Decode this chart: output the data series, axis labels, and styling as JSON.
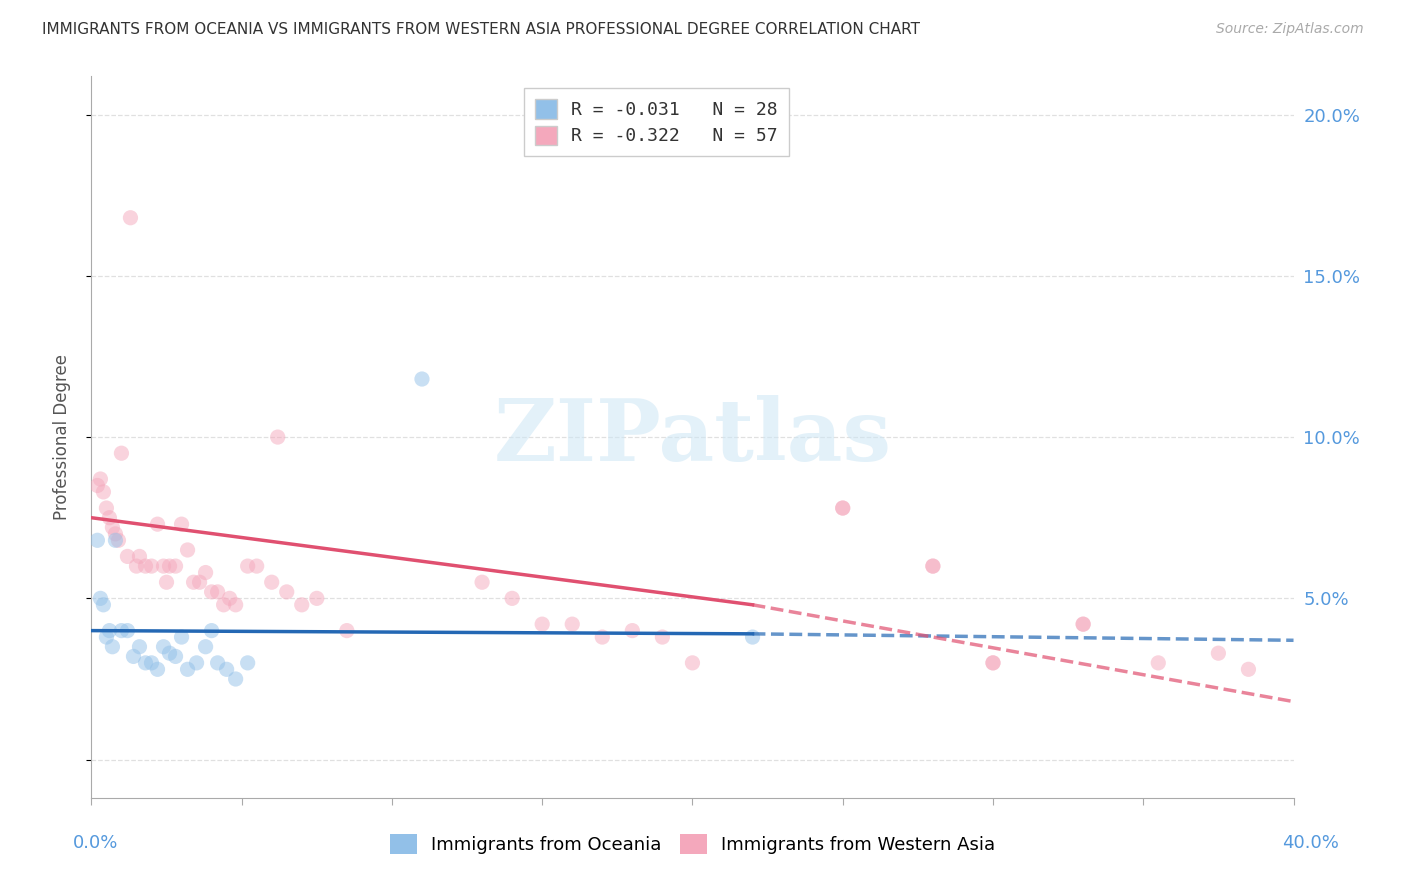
{
  "title": "IMMIGRANTS FROM OCEANIA VS IMMIGRANTS FROM WESTERN ASIA PROFESSIONAL DEGREE CORRELATION CHART",
  "source": "Source: ZipAtlas.com",
  "ylabel": "Professional Degree",
  "xmin": 0.0,
  "xmax": 0.4,
  "ymin": -0.012,
  "ymax": 0.212,
  "watermark_text": "ZIPatlas",
  "legend_r1": "R = -0.031   N = 28",
  "legend_r2": "R = -0.322   N = 57",
  "oceania_color": "#92c0e8",
  "western_asia_color": "#f4a8bc",
  "right_axis_color": "#5599dd",
  "oceania_scatter_x": [
    0.002,
    0.003,
    0.004,
    0.005,
    0.006,
    0.007,
    0.008,
    0.01,
    0.012,
    0.014,
    0.016,
    0.018,
    0.02,
    0.022,
    0.024,
    0.026,
    0.028,
    0.03,
    0.032,
    0.035,
    0.038,
    0.04,
    0.042,
    0.045,
    0.048,
    0.052,
    0.11,
    0.22
  ],
  "oceania_scatter_y": [
    0.068,
    0.05,
    0.048,
    0.038,
    0.04,
    0.035,
    0.068,
    0.04,
    0.04,
    0.032,
    0.035,
    0.03,
    0.03,
    0.028,
    0.035,
    0.033,
    0.032,
    0.038,
    0.028,
    0.03,
    0.035,
    0.04,
    0.03,
    0.028,
    0.025,
    0.03,
    0.118,
    0.038
  ],
  "western_asia_scatter_x": [
    0.002,
    0.003,
    0.004,
    0.005,
    0.006,
    0.007,
    0.008,
    0.009,
    0.01,
    0.012,
    0.013,
    0.015,
    0.016,
    0.018,
    0.02,
    0.022,
    0.024,
    0.025,
    0.026,
    0.028,
    0.03,
    0.032,
    0.034,
    0.036,
    0.038,
    0.04,
    0.042,
    0.044,
    0.046,
    0.048,
    0.052,
    0.055,
    0.06,
    0.062,
    0.065,
    0.07,
    0.075,
    0.085,
    0.13,
    0.14,
    0.15,
    0.16,
    0.17,
    0.18,
    0.19,
    0.2,
    0.25,
    0.28,
    0.3,
    0.33,
    0.355,
    0.375,
    0.385,
    0.25,
    0.28,
    0.3,
    0.33
  ],
  "western_asia_scatter_y": [
    0.085,
    0.087,
    0.083,
    0.078,
    0.075,
    0.072,
    0.07,
    0.068,
    0.095,
    0.063,
    0.168,
    0.06,
    0.063,
    0.06,
    0.06,
    0.073,
    0.06,
    0.055,
    0.06,
    0.06,
    0.073,
    0.065,
    0.055,
    0.055,
    0.058,
    0.052,
    0.052,
    0.048,
    0.05,
    0.048,
    0.06,
    0.06,
    0.055,
    0.1,
    0.052,
    0.048,
    0.05,
    0.04,
    0.055,
    0.05,
    0.042,
    0.042,
    0.038,
    0.04,
    0.038,
    0.03,
    0.078,
    0.06,
    0.03,
    0.042,
    0.03,
    0.033,
    0.028,
    0.078,
    0.06,
    0.03,
    0.042
  ],
  "oceania_trend_x": [
    0.0,
    0.22,
    0.4
  ],
  "oceania_trend_y": [
    0.04,
    0.039,
    0.037
  ],
  "western_trend_x": [
    0.0,
    0.22,
    0.4
  ],
  "western_trend_y": [
    0.075,
    0.048,
    0.018
  ],
  "oceania_trend_color": "#2468b4",
  "western_trend_color": "#e05070",
  "dot_size": 120,
  "dot_alpha": 0.5,
  "grid_color": "#e0e0e0",
  "yticks": [
    0.0,
    0.05,
    0.1,
    0.15,
    0.2
  ],
  "yticklabels_right": [
    "",
    "5.0%",
    "10.0%",
    "15.0%",
    "20.0%"
  ],
  "xticks": [
    0.0,
    0.05,
    0.1,
    0.15,
    0.2,
    0.25,
    0.3,
    0.35,
    0.4
  ],
  "background_color": "#ffffff"
}
